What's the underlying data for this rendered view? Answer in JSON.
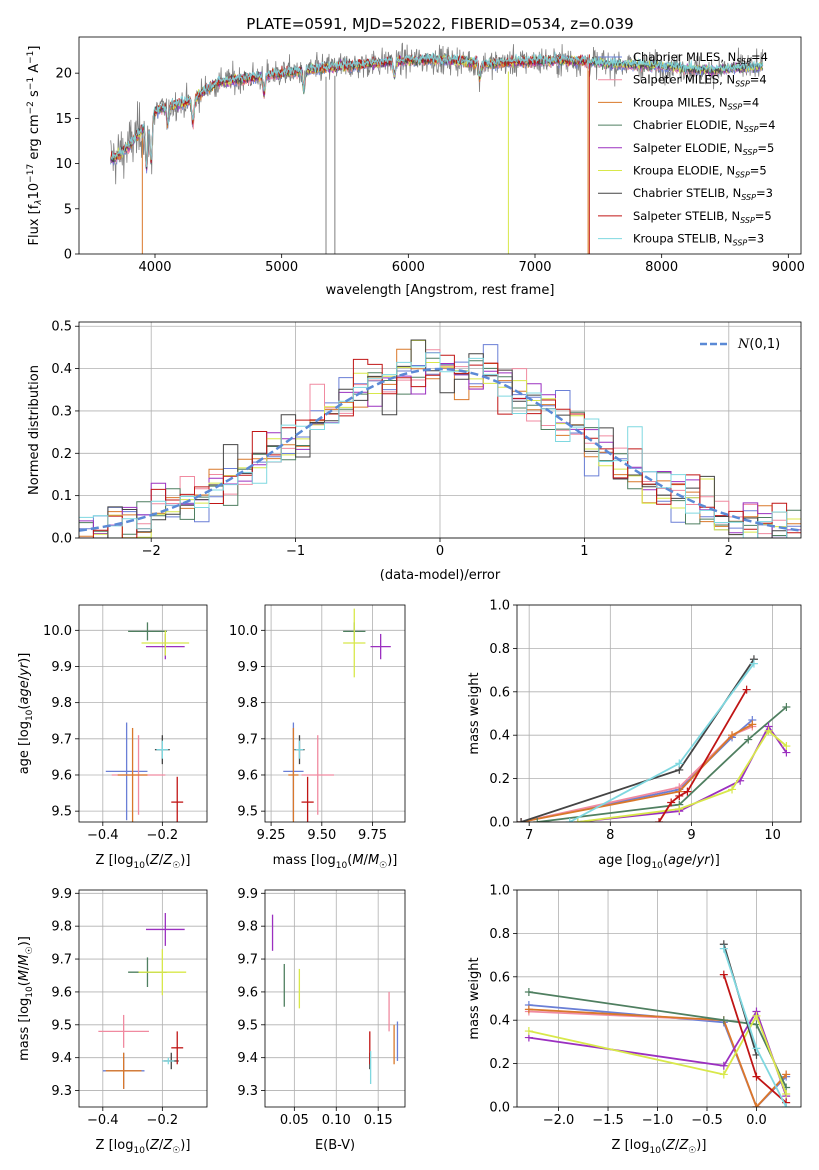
{
  "title": "PLATE=0591, MJD=52022, FIBERID=0534, z=0.039",
  "colors": {
    "s0": "#6a7fd6",
    "s1": "#f08aa0",
    "s2": "#d9782a",
    "s3": "#4f7f60",
    "s4": "#9b30c0",
    "s5": "#d8e84a",
    "s6": "#444444",
    "s7": "#c01515",
    "s8": "#7fd8e0",
    "gauss": "#5b8ad6",
    "data": "#808080"
  },
  "legend_spectrum": [
    {
      "label": "Chabrier MILES, N",
      "sub": "SSP",
      "tail": "=4"
    },
    {
      "label": "Salpeter MILES, N",
      "sub": "SSP",
      "tail": "=4"
    },
    {
      "label": "Kroupa MILES, N",
      "sub": "SSP",
      "tail": "=4"
    },
    {
      "label": "Chabrier ELODIE, N",
      "sub": "SSP",
      "tail": "=4"
    },
    {
      "label": "Salpeter ELODIE, N",
      "sub": "SSP",
      "tail": "=5"
    },
    {
      "label": "Kroupa ELODIE, N",
      "sub": "SSP",
      "tail": "=5"
    },
    {
      "label": "Chabrier STELIB, N",
      "sub": "SSP",
      "tail": "=3"
    },
    {
      "label": "Salpeter STELIB, N",
      "sub": "SSP",
      "tail": "=5"
    },
    {
      "label": "Kroupa STELIB, N",
      "sub": "SSP",
      "tail": "=3"
    }
  ],
  "chart_data": [
    {
      "id": "spectrum",
      "type": "line",
      "xlabel": "wavelength [Angstrom, rest frame]",
      "ylabel_parts": [
        "Flux [f",
        "λ",
        "10",
        "−17",
        " erg cm",
        "−2",
        " s",
        "−1",
        " A",
        "−1",
        "]"
      ],
      "xlim": [
        3400,
        9100
      ],
      "ylim": [
        0,
        24
      ],
      "xticks": [
        4000,
        5000,
        6000,
        7000,
        8000,
        9000
      ],
      "yticks": [
        0,
        5,
        10,
        15,
        20
      ],
      "continuum": {
        "x": [
          3650,
          3700,
          3800,
          3900,
          4000,
          4100,
          4200,
          4300,
          4400,
          4500,
          4600,
          4800,
          5000,
          5200,
          5400,
          5600,
          5800,
          6000,
          6200,
          6400,
          6600,
          6800,
          7000,
          7200,
          7400,
          7600,
          7800,
          8000,
          8200,
          8400,
          8600,
          8800
        ],
        "y": [
          10.5,
          10.8,
          12.0,
          13.8,
          15.8,
          16.4,
          16.6,
          17.0,
          18.2,
          19.0,
          19.2,
          19.6,
          20.0,
          20.3,
          20.7,
          20.9,
          21.2,
          21.4,
          21.5,
          21.4,
          21.0,
          21.2,
          21.3,
          21.4,
          21.3,
          21.0,
          20.9,
          20.8,
          20.5,
          20.3,
          20.6,
          20.7
        ]
      },
      "model_end_x": [
        8800,
        8800,
        7420,
        8800,
        8800,
        8800,
        8800,
        7430,
        8800
      ],
      "drops_x": [
        3900,
        5350,
        5420,
        6790,
        7420
      ]
    },
    {
      "id": "residuals",
      "type": "histogram",
      "xlabel": "(data-model)/error",
      "ylabel": "Normed distribution",
      "xlim": [
        -2.5,
        2.5
      ],
      "ylim": [
        0,
        0.51
      ],
      "xticks": [
        -2,
        -1,
        0,
        1,
        2
      ],
      "yticks": [
        0.0,
        0.1,
        0.2,
        0.3,
        0.4,
        0.5
      ],
      "bin_width": 0.1,
      "legend": "N(0,1)",
      "gaussian": {
        "mu": 0,
        "sigma": 1
      }
    },
    {
      "id": "age_vs_Z",
      "type": "scatter",
      "xlabel": "Z [log10(Z/Z☉)]",
      "ylabel": "age  [log10(age/yr)]",
      "xlim": [
        -0.48,
        -0.05
      ],
      "ylim": [
        9.47,
        10.07
      ],
      "xticks": [
        -0.4,
        -0.2
      ],
      "yticks": [
        9.5,
        9.6,
        9.7,
        9.8,
        9.9,
        10.0
      ],
      "points": [
        {
          "s": 0,
          "x": -0.32,
          "y": 9.61,
          "xe": 0.14,
          "ye": 0.27
        },
        {
          "s": 1,
          "x": -0.28,
          "y": 9.6,
          "xe": 0.18,
          "ye": 0.22
        },
        {
          "s": 2,
          "x": -0.3,
          "y": 9.6,
          "xe": 0.1,
          "ye": 0.26
        },
        {
          "s": 3,
          "x": -0.25,
          "y": 9.997,
          "xe": 0.13,
          "ye": 0.05
        },
        {
          "s": 4,
          "x": -0.19,
          "y": 9.955,
          "xe": 0.13,
          "ye": 0.07
        },
        {
          "s": 5,
          "x": -0.19,
          "y": 9.965,
          "xe": 0.16,
          "ye": 0.07
        },
        {
          "s": 6,
          "x": -0.2,
          "y": 9.67,
          "xe": 0.05,
          "ye": 0.08
        },
        {
          "s": 7,
          "x": -0.15,
          "y": 9.525,
          "xe": 0.04,
          "ye": 0.14
        },
        {
          "s": 8,
          "x": -0.2,
          "y": 9.67,
          "xe": 0.04,
          "ye": 0.05
        }
      ]
    },
    {
      "id": "age_vs_mass",
      "type": "scatter",
      "xlabel": "mass [log10(M/M☉)]",
      "ylabel": "",
      "xlim": [
        9.22,
        9.91
      ],
      "ylim": [
        9.47,
        10.07
      ],
      "xticks": [
        9.25,
        9.5,
        9.75
      ],
      "ytick_labels": [
        "9.5",
        "9.6",
        "9.7",
        "9.8",
        "9.9",
        "10.0"
      ],
      "yticks": [
        9.5,
        9.6,
        9.7,
        9.8,
        9.9,
        10.0
      ],
      "points": [
        {
          "s": 0,
          "x": 9.36,
          "y": 9.61,
          "xe": 0.1,
          "ye": 0.27
        },
        {
          "s": 1,
          "x": 9.48,
          "y": 9.6,
          "xe": 0.16,
          "ye": 0.22
        },
        {
          "s": 2,
          "x": 9.36,
          "y": 9.6,
          "xe": 0.05,
          "ye": 0.26
        },
        {
          "s": 3,
          "x": 9.66,
          "y": 9.997,
          "xe": 0.11,
          "ye": 0.05
        },
        {
          "s": 4,
          "x": 9.79,
          "y": 9.955,
          "xe": 0.1,
          "ye": 0.07
        },
        {
          "s": 5,
          "x": 9.66,
          "y": 9.965,
          "xe": 0.11,
          "ye": 0.19
        },
        {
          "s": 6,
          "x": 9.39,
          "y": 9.67,
          "xe": 0.05,
          "ye": 0.08
        },
        {
          "s": 7,
          "x": 9.43,
          "y": 9.525,
          "xe": 0.06,
          "ye": 0.14
        },
        {
          "s": 8,
          "x": 9.39,
          "y": 9.67,
          "xe": 0.04,
          "ye": 0.05
        }
      ]
    },
    {
      "id": "massweight_vs_age",
      "type": "line",
      "xlabel": "age  [log10(age/yr)]",
      "ylabel": "mass weight",
      "xlim": [
        6.85,
        10.35
      ],
      "ylim": [
        0,
        1.0
      ],
      "xticks": [
        7,
        8,
        9,
        10
      ],
      "yticks": [
        0.0,
        0.2,
        0.4,
        0.6,
        0.8,
        1.0
      ],
      "series": [
        {
          "s": 0,
          "x": [
            6.9,
            8.85,
            9.5,
            9.75
          ],
          "y": [
            0.0,
            0.15,
            0.39,
            0.47
          ]
        },
        {
          "s": 1,
          "x": [
            6.9,
            8.85,
            9.5,
            9.75
          ],
          "y": [
            0.0,
            0.16,
            0.4,
            0.44
          ]
        },
        {
          "s": 2,
          "x": [
            6.9,
            8.85,
            9.5,
            9.75
          ],
          "y": [
            0.0,
            0.14,
            0.4,
            0.45
          ]
        },
        {
          "s": 3,
          "x": [
            7.1,
            8.85,
            9.7,
            10.17
          ],
          "y": [
            0.0,
            0.08,
            0.38,
            0.53
          ]
        },
        {
          "s": 4,
          "x": [
            7.6,
            8.85,
            9.6,
            9.95,
            10.17
          ],
          "y": [
            0.0,
            0.05,
            0.19,
            0.44,
            0.32
          ]
        },
        {
          "s": 5,
          "x": [
            7.6,
            8.85,
            9.5,
            9.95,
            10.17
          ],
          "y": [
            0.0,
            0.06,
            0.15,
            0.42,
            0.35
          ]
        },
        {
          "s": 6,
          "x": [
            6.9,
            8.85,
            9.77
          ],
          "y": [
            0.0,
            0.24,
            0.75
          ]
        },
        {
          "s": 7,
          "x": [
            8.6,
            8.75,
            8.85,
            8.95,
            9.68
          ],
          "y": [
            0.0,
            0.09,
            0.12,
            0.14,
            0.61
          ]
        },
        {
          "s": 8,
          "x": [
            7.5,
            8.85,
            9.77
          ],
          "y": [
            0.0,
            0.27,
            0.73
          ]
        }
      ]
    },
    {
      "id": "mass_vs_Z",
      "type": "scatter",
      "xlabel": "Z [log10(Z/Z☉)]",
      "ylabel": "mass [log10(M/M☉)]",
      "xlim": [
        -0.48,
        -0.05
      ],
      "ylim": [
        9.25,
        9.91
      ],
      "xticks": [
        -0.4,
        -0.2
      ],
      "yticks": [
        9.3,
        9.4,
        9.5,
        9.6,
        9.7,
        9.8,
        9.9
      ],
      "points": [
        {
          "s": 0,
          "x": -0.33,
          "y": 9.36,
          "xe": 0.14,
          "ye": 0.11
        },
        {
          "s": 1,
          "x": -0.33,
          "y": 9.48,
          "xe": 0.17,
          "ye": 0.1
        },
        {
          "s": 2,
          "x": -0.33,
          "y": 9.36,
          "xe": 0.12,
          "ye": 0.11
        },
        {
          "s": 3,
          "x": -0.25,
          "y": 9.66,
          "xe": 0.13,
          "ye": 0.09
        },
        {
          "s": 4,
          "x": -0.19,
          "y": 9.79,
          "xe": 0.13,
          "ye": 0.1
        },
        {
          "s": 5,
          "x": -0.2,
          "y": 9.66,
          "xe": 0.16,
          "ye": 0.14
        },
        {
          "s": 6,
          "x": -0.17,
          "y": 9.39,
          "xe": 0.05,
          "ye": 0.05
        },
        {
          "s": 7,
          "x": -0.15,
          "y": 9.43,
          "xe": 0.04,
          "ye": 0.1
        },
        {
          "s": 8,
          "x": -0.18,
          "y": 9.39,
          "xe": 0.04,
          "ye": 0.02
        }
      ]
    },
    {
      "id": "mass_vs_EBV",
      "type": "scatter",
      "xlabel": "E(B-V)",
      "ylabel": "",
      "xlim": [
        0.015,
        0.182
      ],
      "ylim": [
        9.25,
        9.91
      ],
      "xticks": [
        0.05,
        0.1,
        0.15
      ],
      "xtick_labels": [
        "0.05",
        "0.10",
        "0.15"
      ],
      "ytick_labels": [
        "9.3",
        "9.4",
        "9.5",
        "9.6",
        "9.7",
        "9.8",
        "9.9"
      ],
      "yticks": [
        9.3,
        9.4,
        9.5,
        9.6,
        9.7,
        9.8,
        9.9
      ],
      "points": [
        {
          "s": 0,
          "x": 0.173,
          "y": 9.45,
          "xe": 0.0,
          "ye": 0.12
        },
        {
          "s": 1,
          "x": 0.163,
          "y": 9.54,
          "xe": 0.0,
          "ye": 0.12
        },
        {
          "s": 2,
          "x": 0.169,
          "y": 9.44,
          "xe": 0.0,
          "ye": 0.12
        },
        {
          "s": 3,
          "x": 0.038,
          "y": 9.62,
          "xe": 0.0,
          "ye": 0.13
        },
        {
          "s": 4,
          "x": 0.024,
          "y": 9.78,
          "xe": 0.0,
          "ye": 0.11
        },
        {
          "s": 5,
          "x": 0.056,
          "y": 9.61,
          "xe": 0.0,
          "ye": 0.12
        },
        {
          "s": 6,
          "x": 0.14,
          "y": 9.39,
          "xe": 0.0,
          "ye": 0.05
        },
        {
          "s": 7,
          "x": 0.14,
          "y": 9.43,
          "xe": 0.0,
          "ye": 0.1
        },
        {
          "s": 8,
          "x": 0.141,
          "y": 9.37,
          "xe": 0.0,
          "ye": 0.1
        }
      ]
    },
    {
      "id": "massweight_vs_Z",
      "type": "line",
      "xlabel": "Z [log10(Z/Z☉)]",
      "ylabel": "mass weight",
      "xlim": [
        -2.42,
        0.45
      ],
      "ylim": [
        0,
        1.0
      ],
      "xticks": [
        -2.0,
        -1.5,
        -1.0,
        -0.5,
        0.0
      ],
      "yticks": [
        0.0,
        0.2,
        0.4,
        0.6,
        0.8,
        1.0
      ],
      "series": [
        {
          "s": 0,
          "x": [
            -2.3,
            -0.33,
            0.0,
            0.3
          ],
          "y": [
            0.47,
            0.39,
            0.0,
            0.14
          ]
        },
        {
          "s": 1,
          "x": [
            -2.3,
            -0.33,
            0.0,
            0.3
          ],
          "y": [
            0.44,
            0.4,
            0.0,
            0.15
          ]
        },
        {
          "s": 2,
          "x": [
            -2.3,
            -0.33,
            0.0,
            0.3
          ],
          "y": [
            0.45,
            0.4,
            0.0,
            0.15
          ]
        },
        {
          "s": 3,
          "x": [
            -2.3,
            -0.33,
            0.0,
            0.3
          ],
          "y": [
            0.53,
            0.4,
            0.38,
            0.09
          ]
        },
        {
          "s": 4,
          "x": [
            -2.3,
            -0.33,
            0.0,
            0.3
          ],
          "y": [
            0.32,
            0.19,
            0.44,
            0.05
          ]
        },
        {
          "s": 5,
          "x": [
            -2.3,
            -0.33,
            0.0,
            0.3
          ],
          "y": [
            0.35,
            0.15,
            0.42,
            0.06
          ]
        },
        {
          "s": 6,
          "x": [
            -0.33,
            0.0
          ],
          "y": [
            0.75,
            0.24
          ]
        },
        {
          "s": 7,
          "x": [
            -0.33,
            0.0,
            0.3
          ],
          "y": [
            0.61,
            0.14,
            0.02
          ]
        },
        {
          "s": 8,
          "x": [
            -0.33,
            0.0,
            0.3
          ],
          "y": [
            0.73,
            0.27,
            0.0
          ]
        }
      ]
    }
  ]
}
